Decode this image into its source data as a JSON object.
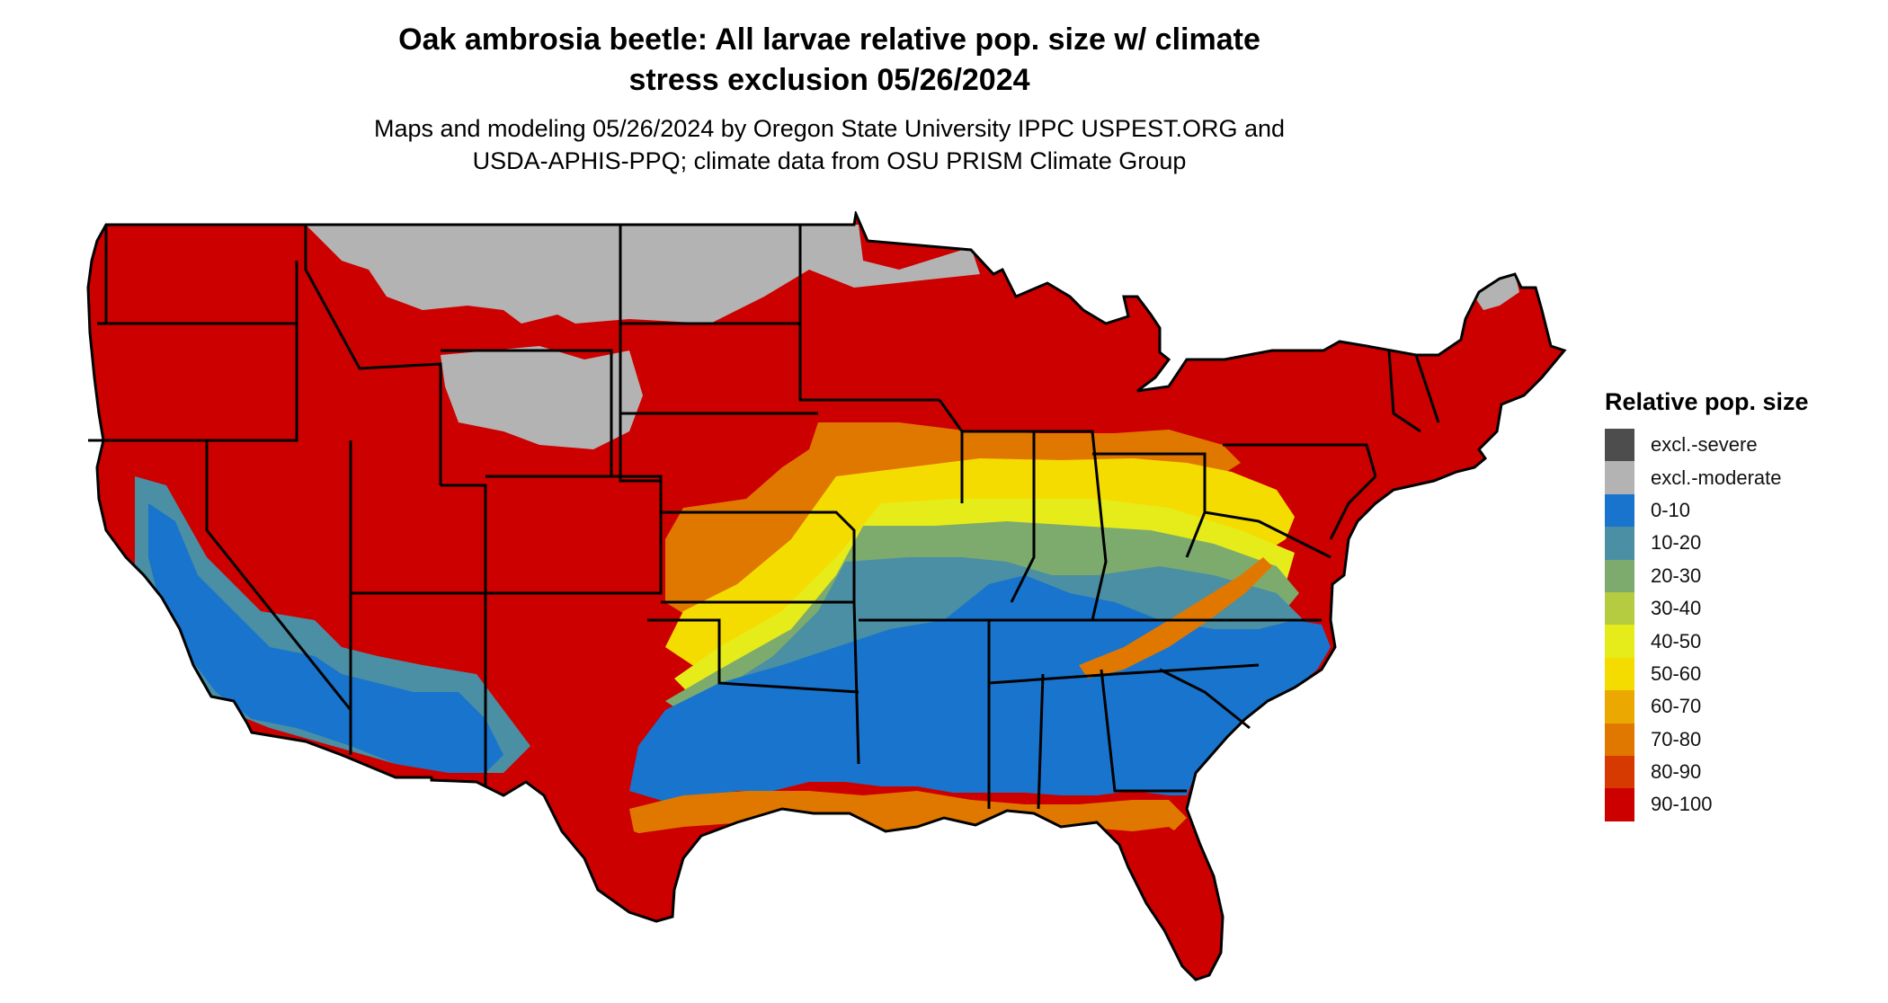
{
  "title": {
    "line1": "Oak ambrosia beetle: All larvae relative pop. size w/ climate",
    "line2": "stress exclusion 05/26/2024"
  },
  "subtitle": {
    "line1": "Maps and modeling 05/26/2024 by Oregon State University IPPC USPEST.ORG and",
    "line2": "USDA-APHIS-PPQ; climate data from OSU PRISM Climate Group"
  },
  "legend": {
    "title": "Relative pop. size",
    "items": [
      {
        "label": "excl.-severe",
        "color": "#4d4d4d"
      },
      {
        "label": "excl.-moderate",
        "color": "#b3b3b3"
      },
      {
        "label": "0-10",
        "color": "#1874cd"
      },
      {
        "label": "10-20",
        "color": "#4a8fa4"
      },
      {
        "label": "20-30",
        "color": "#7dab6e"
      },
      {
        "label": "30-40",
        "color": "#b5cc40"
      },
      {
        "label": "40-50",
        "color": "#e6ec1a"
      },
      {
        "label": "50-60",
        "color": "#f5dc00"
      },
      {
        "label": "60-70",
        "color": "#eba800"
      },
      {
        "label": "70-80",
        "color": "#e07800"
      },
      {
        "label": "80-90",
        "color": "#d63a00"
      },
      {
        "label": "90-100",
        "color": "#cd0000"
      }
    ]
  },
  "map": {
    "region": "Contiguous United States",
    "layers": [
      {
        "name": "excl-moderate-north",
        "class": "excl.-moderate"
      },
      {
        "name": "north-tier",
        "class": "90-100"
      },
      {
        "name": "band-70-80",
        "class": "70-80"
      },
      {
        "name": "band-50-60",
        "class": "50-60"
      },
      {
        "name": "band-40-50",
        "class": "40-50"
      },
      {
        "name": "band-20-30",
        "class": "20-30"
      },
      {
        "name": "band-10-20",
        "class": "10-20"
      },
      {
        "name": "southeast-core",
        "class": "0-10"
      },
      {
        "name": "gulf-coast",
        "class": "90-100"
      }
    ]
  }
}
